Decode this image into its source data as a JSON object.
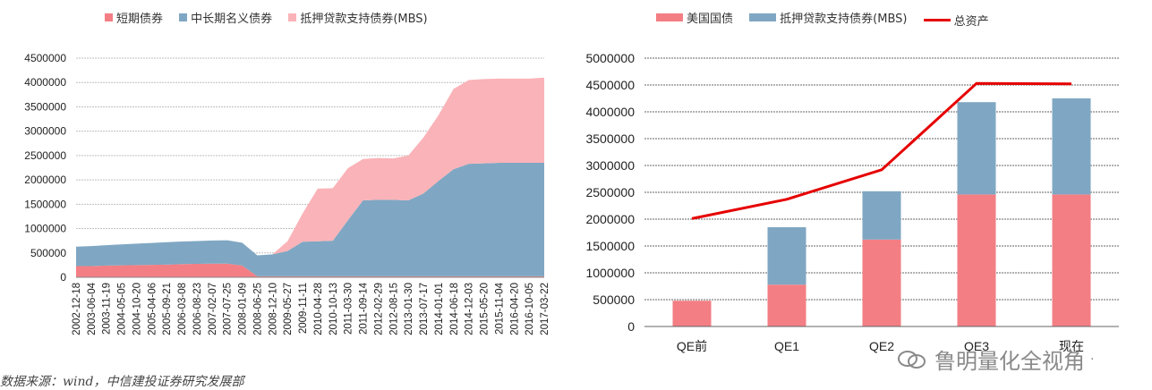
{
  "colors": {
    "short_term": "#F37E84",
    "long_term": "#7FA7C3",
    "mbs_light": "#FAB3B8",
    "treasury": "#F37E84",
    "mbs": "#7FA7C3",
    "total": "#E60000",
    "grid": "#BFBFBF",
    "axis_text": "#222222"
  },
  "chart_data": [
    {
      "type": "area",
      "stacked": true,
      "legend_placement": "top",
      "legend": [
        "短期债券",
        "中长期名义债券",
        "抵押贷款支持债券(MBS)"
      ],
      "x_labels": [
        "2002-12-18",
        "2003-06-04",
        "2003-11-19",
        "2004-05-05",
        "2004-10-20",
        "2005-04-06",
        "2005-09-21",
        "2006-03-08",
        "2006-08-23",
        "2007-02-07",
        "2007-07-25",
        "2008-01-09",
        "2008-06-25",
        "2008-12-10",
        "2009-05-27",
        "2009-11-11",
        "2010-04-28",
        "2010-10-13",
        "2011-03-30",
        "2011-09-14",
        "2012-02-29",
        "2012-08-15",
        "2013-01-30",
        "2013-07-17",
        "2014-01-01",
        "2014-06-18",
        "2014-12-03",
        "2015-05-20",
        "2015-11-04",
        "2016-04-20",
        "2016-10-05",
        "2017-03-22"
      ],
      "y_ticks": [
        "0",
        "500000",
        "1000000",
        "1500000",
        "2000000",
        "2500000",
        "3000000",
        "3500000",
        "4000000",
        "4500000"
      ],
      "ylim": [
        0,
        4500000
      ],
      "series": [
        {
          "name": "短期债券",
          "values": [
            230000,
            230000,
            240000,
            245000,
            250000,
            255000,
            260000,
            270000,
            275000,
            280000,
            280000,
            240000,
            20000,
            20000,
            20000,
            20000,
            20000,
            20000,
            20000,
            20000,
            20000,
            20000,
            20000,
            20000,
            20000,
            20000,
            20000,
            20000,
            20000,
            20000,
            20000,
            20000
          ]
        },
        {
          "name": "中长期名义债券",
          "values": [
            400000,
            410000,
            420000,
            430000,
            440000,
            450000,
            460000,
            465000,
            470000,
            475000,
            480000,
            470000,
            430000,
            450000,
            520000,
            710000,
            720000,
            730000,
            1150000,
            1560000,
            1570000,
            1570000,
            1560000,
            1700000,
            1960000,
            2200000,
            2310000,
            2320000,
            2330000,
            2330000,
            2330000,
            2330000
          ]
        },
        {
          "name": "抵押贷款支持债券(MBS)",
          "values": [
            0,
            0,
            0,
            0,
            0,
            0,
            0,
            0,
            0,
            0,
            0,
            0,
            0,
            0,
            200000,
            580000,
            1080000,
            1080000,
            1070000,
            850000,
            860000,
            850000,
            920000,
            1150000,
            1350000,
            1650000,
            1720000,
            1730000,
            1730000,
            1730000,
            1730000,
            1750000
          ]
        }
      ]
    },
    {
      "type": "bar",
      "stacked": true,
      "legend_placement": "top",
      "categories": [
        "QE前",
        "QE1",
        "QE2",
        "QE3",
        "现在"
      ],
      "y_ticks": [
        "0",
        "500000",
        "1000000",
        "1500000",
        "2000000",
        "2500000",
        "3000000",
        "3500000",
        "4000000",
        "4500000",
        "5000000"
      ],
      "ylim": [
        0,
        5000000
      ],
      "series": [
        {
          "name": "美国国债",
          "type": "bar",
          "values": [
            480000,
            780000,
            1620000,
            2460000,
            2460000
          ]
        },
        {
          "name": "抵押贷款支持债券(MBS)",
          "type": "bar",
          "values": [
            0,
            1070000,
            900000,
            1720000,
            1790000
          ]
        },
        {
          "name": "总资产",
          "type": "line",
          "values": [
            2010000,
            2370000,
            2920000,
            4530000,
            4520000
          ]
        }
      ]
    }
  ],
  "watermark": {
    "text": "鲁明量化全视角",
    "trail": "·"
  },
  "source_text": "数据来源：wind，中信建投证券研究发展部"
}
